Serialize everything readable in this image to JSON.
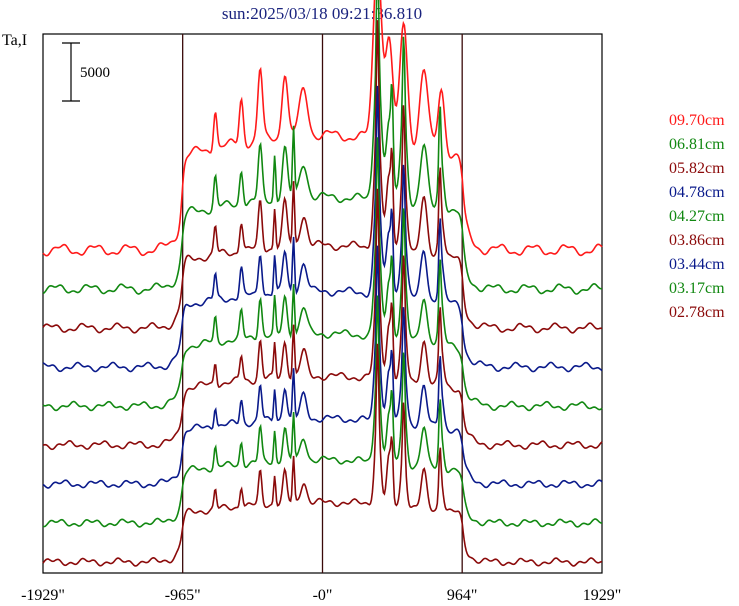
{
  "chart_data": {
    "type": "line",
    "title": "sun:2025/03/18 09:21:36.810",
    "ylabel": "Ta,I",
    "scale_bar_label": "5000",
    "scale_bar_value": 5000,
    "x_ticks": [
      {
        "label": "-1929\"",
        "value": -1929
      },
      {
        "label": "-965\"",
        "value": -965
      },
      {
        "label": "-0\"",
        "value": 0
      },
      {
        "label": "964\"",
        "value": 964
      },
      {
        "label": "1929\"",
        "value": 1929
      }
    ],
    "xlim": [
      -1929,
      1929
    ],
    "vertical_markers": [
      -965,
      0,
      964
    ],
    "series_style": "stacked offset traces, shortest wavelength at bottom",
    "series": [
      {
        "name": "09.70cm",
        "color": "#ff1a1a",
        "scale": 1.0
      },
      {
        "name": "06.81cm",
        "color": "#118811",
        "scale": 0.8
      },
      {
        "name": "05.82cm",
        "color": "#8b0a0a",
        "scale": 0.72
      },
      {
        "name": "04.78cm",
        "color": "#0a1a8b",
        "scale": 0.66
      },
      {
        "name": "04.27cm",
        "color": "#118811",
        "scale": 0.63
      },
      {
        "name": "03.86cm",
        "color": "#8b0a0a",
        "scale": 0.6
      },
      {
        "name": "03.44cm",
        "color": "#0a1a8b",
        "scale": 0.57
      },
      {
        "name": "03.17cm",
        "color": "#118811",
        "scale": 0.55
      },
      {
        "name": "02.78cm",
        "color": "#8b0a0a",
        "scale": 0.52
      }
    ]
  }
}
